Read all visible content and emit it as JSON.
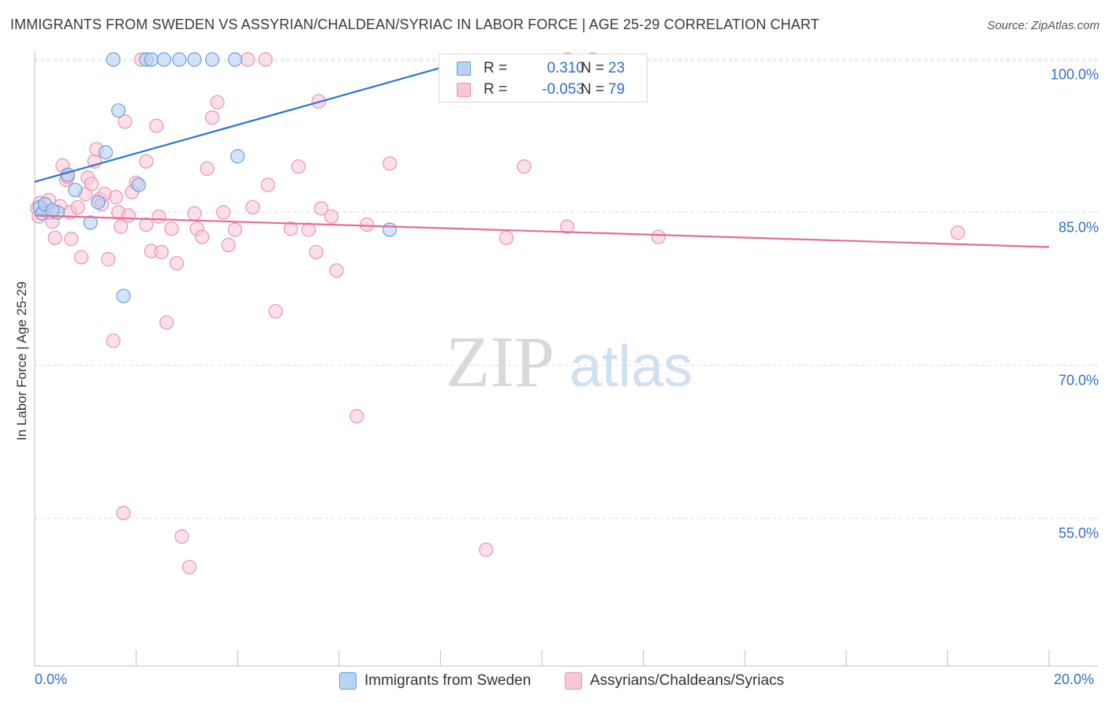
{
  "title": "IMMIGRANTS FROM SWEDEN VS ASSYRIAN/CHALDEAN/SYRIAC IN LABOR FORCE | AGE 25-29 CORRELATION CHART",
  "source": "Source: ZipAtlas.com",
  "watermark": {
    "zip": "ZIP",
    "atlas": "atlas"
  },
  "legend": {
    "r_label": "R =",
    "n_label": "N =",
    "series1": {
      "r": "0.310",
      "n": "23"
    },
    "series2": {
      "r": "-0.053",
      "n": "79"
    }
  },
  "bottom_legend": {
    "series1": "Immigrants from Sweden",
    "series2": "Assyrians/Chaldeans/Syriacs"
  },
  "x_axis": {
    "min_label": "0.0%",
    "max_label": "20.0%"
  },
  "colors": {
    "blue_fill": "#b8d2f3",
    "blue_stroke": "#6a9fe0",
    "blue_line": "#2f74d0",
    "pink_fill": "#f8c7d6",
    "pink_stroke": "#eb93b0",
    "pink_line": "#e46c98",
    "tick_text": "#2f6fc9"
  },
  "chart_data": {
    "type": "scatter",
    "title": "IMMIGRANTS FROM SWEDEN VS ASSYRIAN/CHALDEAN/SYRIAC IN LABOR FORCE | AGE 25-29 CORRELATION CHART",
    "xlabel": "",
    "ylabel": "In Labor Force | Age 25-29",
    "xlim": [
      0,
      20
    ],
    "ylim": [
      40.5,
      101.2
    ],
    "y_ticks": [
      {
        "value": 100,
        "label": "100.0%"
      },
      {
        "value": 85,
        "label": "85.0%"
      },
      {
        "value": 70,
        "label": "70.0%"
      },
      {
        "value": 55,
        "label": "55.0%"
      }
    ],
    "x_ticks": [
      0,
      2,
      4,
      6,
      8,
      10,
      12,
      14,
      16,
      18,
      20
    ],
    "grid": true,
    "series": [
      {
        "name": "Immigrants from Sweden",
        "color": "blue",
        "trend": {
          "x0": 0.0,
          "y0": 88.0,
          "x1": 8.3,
          "y1": 99.6
        },
        "points": [
          [
            0.1,
            85.5
          ],
          [
            0.15,
            84.9
          ],
          [
            0.2,
            85.8
          ],
          [
            0.45,
            85.0
          ],
          [
            0.65,
            88.7
          ],
          [
            0.8,
            87.2
          ],
          [
            1.1,
            84.0
          ],
          [
            1.25,
            86.0
          ],
          [
            1.4,
            90.9
          ],
          [
            1.55,
            100.0
          ],
          [
            1.65,
            95.0
          ],
          [
            1.75,
            76.8
          ],
          [
            2.05,
            87.7
          ],
          [
            2.2,
            100.0
          ],
          [
            2.3,
            100.0
          ],
          [
            2.55,
            100.0
          ],
          [
            2.85,
            100.0
          ],
          [
            3.15,
            100.0
          ],
          [
            3.5,
            100.0
          ],
          [
            3.95,
            100.0
          ],
          [
            4.0,
            90.5
          ],
          [
            7.0,
            83.3
          ],
          [
            0.35,
            85.2
          ]
        ]
      },
      {
        "name": "Assyrians/Chaldeans/Syriacs",
        "color": "pink",
        "trend": {
          "x0": 0.0,
          "y0": 84.7,
          "x1": 20.0,
          "y1": 81.6
        },
        "points": [
          [
            0.05,
            85.4
          ],
          [
            0.08,
            84.6
          ],
          [
            0.1,
            85.9
          ],
          [
            0.2,
            85.2
          ],
          [
            0.28,
            86.2
          ],
          [
            0.35,
            84.1
          ],
          [
            0.4,
            82.5
          ],
          [
            0.5,
            85.6
          ],
          [
            0.55,
            89.6
          ],
          [
            0.62,
            88.2
          ],
          [
            0.7,
            85.0
          ],
          [
            0.72,
            82.4
          ],
          [
            0.85,
            85.5
          ],
          [
            0.92,
            80.6
          ],
          [
            1.0,
            86.8
          ],
          [
            1.05,
            88.4
          ],
          [
            1.12,
            87.8
          ],
          [
            1.18,
            90.0
          ],
          [
            1.22,
            91.2
          ],
          [
            1.28,
            86.3
          ],
          [
            1.32,
            85.8
          ],
          [
            1.38,
            86.8
          ],
          [
            1.45,
            80.4
          ],
          [
            1.55,
            72.4
          ],
          [
            1.6,
            86.5
          ],
          [
            1.65,
            85.0
          ],
          [
            1.7,
            83.6
          ],
          [
            1.75,
            55.5
          ],
          [
            1.78,
            93.9
          ],
          [
            1.85,
            84.7
          ],
          [
            1.92,
            87.0
          ],
          [
            2.0,
            87.9
          ],
          [
            2.1,
            100.0
          ],
          [
            2.2,
            83.8
          ],
          [
            2.2,
            90.0
          ],
          [
            2.3,
            81.2
          ],
          [
            2.4,
            93.5
          ],
          [
            2.45,
            84.6
          ],
          [
            2.5,
            81.1
          ],
          [
            2.6,
            74.2
          ],
          [
            2.7,
            83.4
          ],
          [
            2.8,
            80.0
          ],
          [
            2.9,
            53.2
          ],
          [
            3.05,
            50.2
          ],
          [
            3.15,
            84.9
          ],
          [
            3.2,
            83.4
          ],
          [
            3.3,
            82.6
          ],
          [
            3.4,
            89.3
          ],
          [
            3.5,
            94.3
          ],
          [
            3.6,
            95.8
          ],
          [
            3.72,
            85.0
          ],
          [
            3.82,
            81.8
          ],
          [
            3.95,
            83.3
          ],
          [
            4.2,
            100.0
          ],
          [
            4.3,
            85.5
          ],
          [
            4.55,
            100.0
          ],
          [
            4.6,
            87.7
          ],
          [
            4.75,
            75.3
          ],
          [
            5.05,
            83.4
          ],
          [
            5.2,
            89.5
          ],
          [
            5.4,
            83.3
          ],
          [
            5.55,
            81.1
          ],
          [
            5.6,
            95.9
          ],
          [
            5.65,
            85.4
          ],
          [
            5.85,
            84.6
          ],
          [
            5.95,
            79.3
          ],
          [
            6.35,
            65.0
          ],
          [
            6.55,
            83.8
          ],
          [
            7.0,
            89.8
          ],
          [
            8.9,
            51.9
          ],
          [
            9.3,
            82.5
          ],
          [
            9.65,
            89.5
          ],
          [
            10.5,
            100.0
          ],
          [
            10.5,
            83.6
          ],
          [
            11.0,
            100.0
          ],
          [
            12.3,
            82.6
          ],
          [
            18.2,
            83.0
          ],
          [
            0.65,
            88.5
          ],
          [
            0.3,
            85.0
          ]
        ]
      }
    ]
  }
}
